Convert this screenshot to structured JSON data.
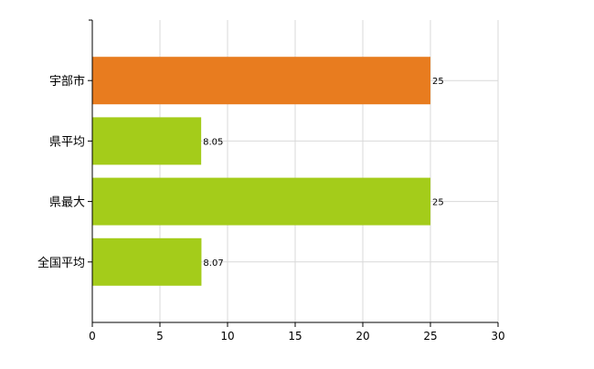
{
  "chart_data": {
    "type": "bar",
    "orientation": "horizontal",
    "categories": [
      "宇部市",
      "県平均",
      "県最大",
      "全国平均"
    ],
    "values": [
      25,
      8.05,
      25,
      8.07
    ],
    "value_labels": [
      "25",
      "8.05",
      "25",
      "8.07"
    ],
    "bar_colors": [
      "#e87c1f",
      "#a4cc1a",
      "#a4cc1a",
      "#a4cc1a"
    ],
    "xlim": [
      0,
      30
    ],
    "x_ticks": [
      0,
      5,
      10,
      15,
      20,
      25,
      30
    ],
    "x_tick_labels": [
      "0",
      "5",
      "10",
      "15",
      "20",
      "25",
      "30"
    ],
    "grid": true,
    "grid_color": "#d9d9d9",
    "axis_color": "#000000"
  }
}
